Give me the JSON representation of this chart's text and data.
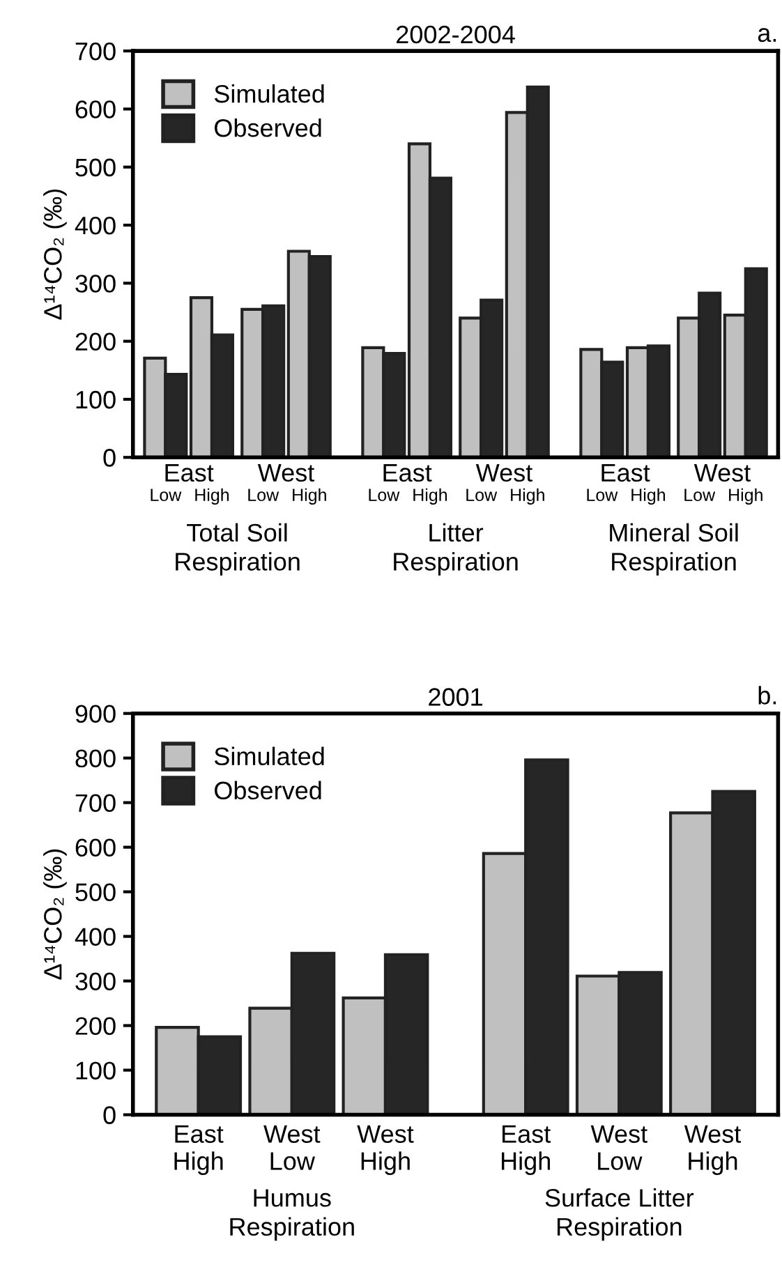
{
  "chart_data": [
    {
      "type": "bar",
      "title": "2002-2004",
      "ylabel": "Δ¹⁴CO₂ (‰)",
      "categories": [
        "Low",
        "High",
        "Low",
        "High",
        "Low",
        "High",
        "Low",
        "High",
        "Low",
        "High",
        "Low",
        "High"
      ],
      "series": [
        {
          "name": "Simulated",
          "color": "#c0c0c0",
          "values": [
            171,
            275,
            255,
            355,
            189,
            540,
            240,
            594,
            186,
            189,
            240,
            245
          ]
        },
        {
          "name": "Observed",
          "color": "#262626",
          "values": [
            143,
            211,
            261,
            346,
            179,
            481,
            271,
            638,
            164,
            192,
            283,
            325
          ]
        }
      ],
      "ylim": [
        0,
        700
      ],
      "yticks": [
        0,
        100,
        200,
        300,
        400,
        500,
        600,
        700
      ],
      "legend": "top left",
      "grid": false,
      "annotations": [
        "a.",
        "East",
        "West",
        "East",
        "West",
        "East",
        "West",
        "Total Soil\nRespiration",
        "Litter\nRespiration",
        "Mineral Soil\nRespiration"
      ]
    },
    {
      "type": "bar",
      "title": "2001",
      "ylabel": "Δ¹⁴CO₂ (‰)",
      "categories": [
        "East\nHigh",
        "West\nLow",
        "West\nHigh",
        "East\nHigh",
        "West\nLow",
        "West\nHigh"
      ],
      "series": [
        {
          "name": "Simulated",
          "color": "#c0c0c0",
          "values": [
            196,
            239,
            262,
            586,
            311,
            677
          ]
        },
        {
          "name": "Observed",
          "color": "#262626",
          "values": [
            175,
            362,
            359,
            796,
            319,
            725
          ]
        }
      ],
      "ylim": [
        0,
        900
      ],
      "yticks": [
        0,
        100,
        200,
        300,
        400,
        500,
        600,
        700,
        800,
        900
      ],
      "legend": "top left",
      "grid": false,
      "annotations": [
        "b.",
        "Humus\nRespiration",
        "Surface Litter\nRespiration"
      ]
    }
  ]
}
